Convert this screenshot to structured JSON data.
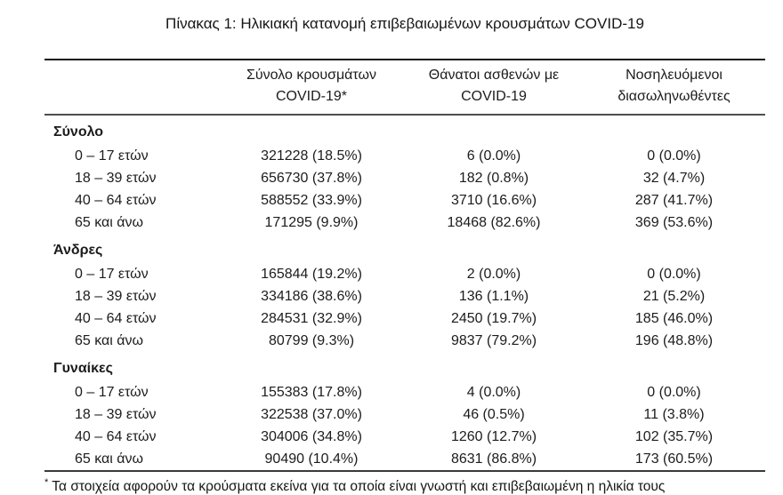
{
  "title": "Πίνακας 1: Ηλικιακή κατανομή επιβεβαιωμένων κρουσμάτων COVID-19",
  "table": {
    "columns": [
      {
        "line1": "Σύνολο κρουσμάτων",
        "line2": "COVID-19*"
      },
      {
        "line1": "Θάνατοι ασθενών με",
        "line2": "COVID-19"
      },
      {
        "line1": "Νοσηλευόμενοι",
        "line2": "διασωληνωθέντες"
      }
    ],
    "groups": [
      {
        "label": "Σύνολο",
        "rows": [
          {
            "age": "0 – 17 ετών",
            "cases": "321228 (18.5%)",
            "deaths": "6 (0.0%)",
            "intubated": "0 (0.0%)"
          },
          {
            "age": "18 – 39 ετών",
            "cases": "656730 (37.8%)",
            "deaths": "182 (0.8%)",
            "intubated": "32 (4.7%)"
          },
          {
            "age": "40 – 64 ετών",
            "cases": "588552 (33.9%)",
            "deaths": "3710 (16.6%)",
            "intubated": "287 (41.7%)"
          },
          {
            "age": "65 και άνω",
            "cases": "171295 (9.9%)",
            "deaths": "18468 (82.6%)",
            "intubated": "369 (53.6%)"
          }
        ]
      },
      {
        "label": "Άνδρες",
        "rows": [
          {
            "age": "0 – 17 ετών",
            "cases": "165844 (19.2%)",
            "deaths": "2 (0.0%)",
            "intubated": "0 (0.0%)"
          },
          {
            "age": "18 – 39 ετών",
            "cases": "334186 (38.6%)",
            "deaths": "136 (1.1%)",
            "intubated": "21 (5.2%)"
          },
          {
            "age": "40 – 64 ετών",
            "cases": "284531 (32.9%)",
            "deaths": "2450 (19.7%)",
            "intubated": "185 (46.0%)"
          },
          {
            "age": "65 και άνω",
            "cases": "80799 (9.3%)",
            "deaths": "9837 (79.2%)",
            "intubated": "196 (48.8%)"
          }
        ]
      },
      {
        "label": "Γυναίκες",
        "rows": [
          {
            "age": "0 – 17 ετών",
            "cases": "155383 (17.8%)",
            "deaths": "4 (0.0%)",
            "intubated": "0 (0.0%)"
          },
          {
            "age": "18 – 39 ετών",
            "cases": "322538 (37.0%)",
            "deaths": "46 (0.5%)",
            "intubated": "11 (3.8%)"
          },
          {
            "age": "40 – 64 ετών",
            "cases": "304006 (34.8%)",
            "deaths": "1260 (12.7%)",
            "intubated": "102 (35.7%)"
          },
          {
            "age": "65 και άνω",
            "cases": "90490 (10.4%)",
            "deaths": "8631 (86.8%)",
            "intubated": "173 (60.5%)"
          }
        ]
      }
    ]
  },
  "footnote": {
    "marker": "*",
    "text": "Τα στοιχεία αφορούν τα κρούσματα εκείνα για τα οποία είναι γνωστή και επιβεβαιωμένη η ηλικία τους"
  }
}
